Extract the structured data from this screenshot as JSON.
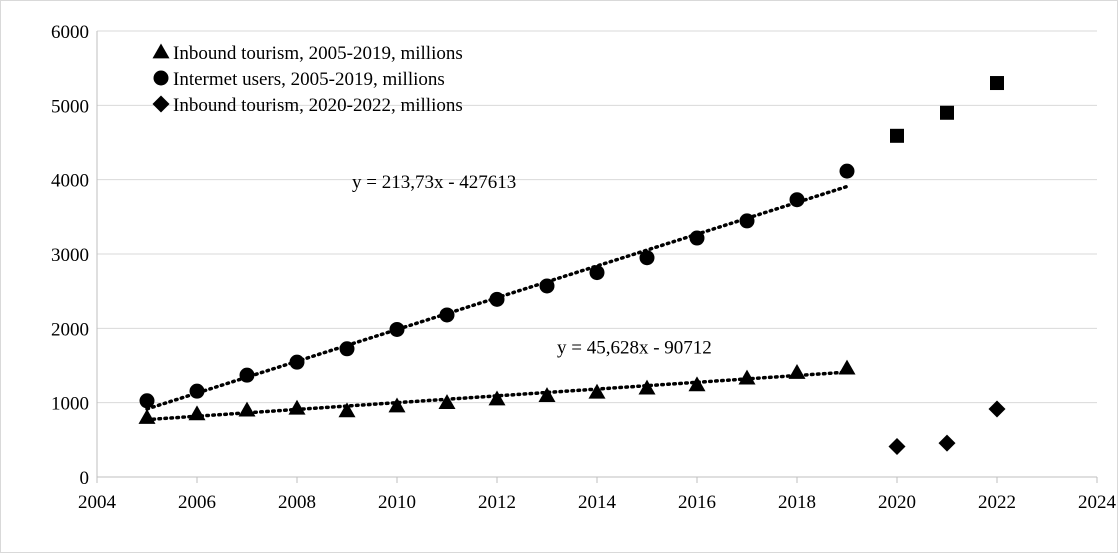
{
  "chart_data": {
    "type": "scatter",
    "title": "",
    "xlabel": "",
    "ylabel": "",
    "xlim": [
      2004,
      2024
    ],
    "ylim": [
      0,
      6000
    ],
    "x_ticks": [
      2004,
      2006,
      2008,
      2010,
      2012,
      2014,
      2016,
      2018,
      2020,
      2022,
      2024
    ],
    "y_ticks": [
      0,
      1000,
      2000,
      3000,
      4000,
      5000,
      6000
    ],
    "grid": "horizontal",
    "legend_position": "top-left",
    "series": [
      {
        "name": "Inbound tourism, 2005-2019, millions",
        "marker": "triangle",
        "x": [
          2005,
          2006,
          2007,
          2008,
          2009,
          2010,
          2011,
          2012,
          2013,
          2014,
          2015,
          2016,
          2017,
          2018,
          2019
        ],
        "y": [
          800,
          850,
          900,
          925,
          890,
          955,
          1000,
          1050,
          1095,
          1140,
          1195,
          1240,
          1330,
          1405,
          1465
        ]
      },
      {
        "name": "Intermet users, 2005-2019, millions",
        "marker": "circle",
        "x": [
          2005,
          2006,
          2007,
          2008,
          2009,
          2010,
          2011,
          2012,
          2013,
          2014,
          2015,
          2016,
          2017,
          2018,
          2019
        ],
        "y": [
          1025,
          1155,
          1370,
          1545,
          1725,
          1985,
          2180,
          2390,
          2570,
          2750,
          2950,
          3215,
          3445,
          3730,
          4115
        ]
      },
      {
        "name": "Inbound tourism, 2020-2022, millions",
        "marker": "diamond",
        "x": [
          2020,
          2021,
          2022
        ],
        "y": [
          410,
          455,
          915
        ]
      },
      {
        "marker": "square",
        "x": [
          2020,
          2021,
          2022
        ],
        "y": [
          4590,
          4900,
          5300
        ]
      }
    ],
    "trendlines": [
      {
        "equation": "y = 213,73x - 427613",
        "slope": 213.73,
        "intercept": -427613,
        "x_range": [
          2005,
          2019
        ]
      },
      {
        "equation": "y = 45,628x - 90712",
        "slope": 45.628,
        "intercept": -90712,
        "x_range": [
          2005,
          2019
        ]
      }
    ]
  }
}
